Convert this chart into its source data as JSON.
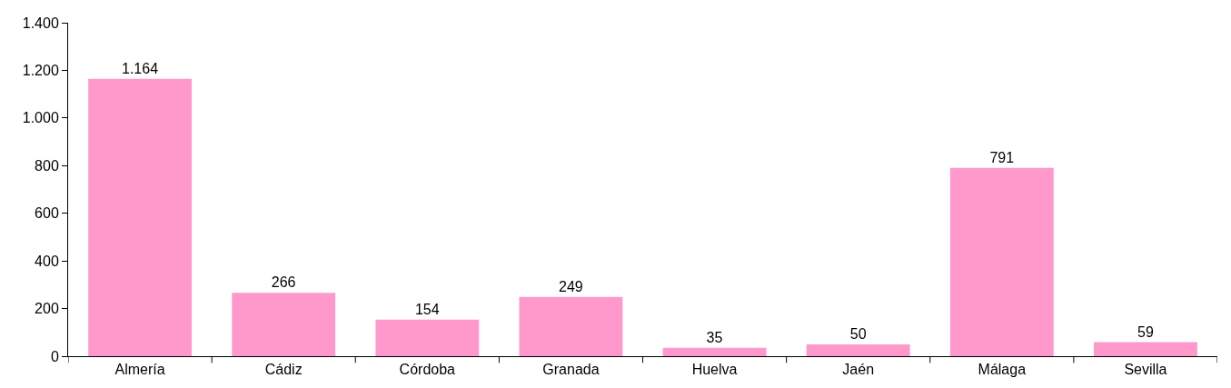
{
  "chart_data": {
    "type": "bar",
    "categories": [
      "Almería",
      "Cádiz",
      "Córdoba",
      "Granada",
      "Huelva",
      "Jaén",
      "Málaga",
      "Sevilla"
    ],
    "values": [
      1164,
      266,
      154,
      249,
      35,
      50,
      791,
      59
    ],
    "value_labels": [
      "1.164",
      "266",
      "154",
      "249",
      "35",
      "50",
      "791",
      "59"
    ],
    "color": "#ff99cc",
    "ylim": [
      0,
      1400
    ],
    "yticks": [
      0,
      200,
      400,
      600,
      800,
      {
        "value": 1000,
        "label": "1.000"
      },
      {
        "value": 1200,
        "label": "1.200"
      },
      {
        "value": 1400,
        "label": "1.400"
      }
    ]
  }
}
